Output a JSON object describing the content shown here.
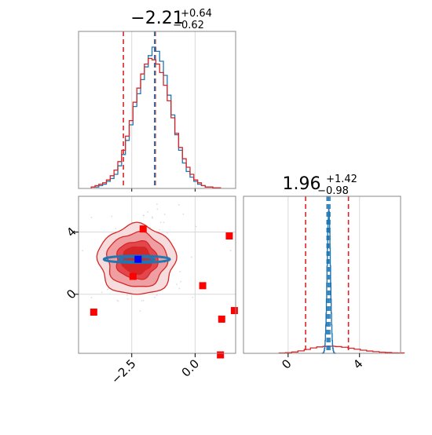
{
  "chart_data": [
    {
      "type": "histogram",
      "panel": "top-left",
      "title_main": "−2.21",
      "title_sup": "+0.64",
      "title_sub": "−0.62",
      "xlim": [
        -4.6,
        1.6
      ],
      "grid": true,
      "quantile_lines": [
        -2.83,
        -1.57
      ],
      "reference_line": -1.6,
      "series": [
        {
          "color": "#1f77b4",
          "bin_start": -4.1,
          "bin_width": 0.15,
          "counts": [
            1,
            1,
            2,
            3,
            5,
            7,
            10,
            16,
            24,
            34,
            45,
            58,
            67,
            77,
            86,
            94,
            100,
            97,
            90,
            80,
            66,
            52,
            38,
            27,
            18,
            12,
            8,
            5,
            3,
            2,
            1,
            1,
            0.5,
            0.5
          ]
        },
        {
          "color": "#d62728",
          "bin_start": -4.1,
          "bin_width": 0.15,
          "counts": [
            1,
            2,
            3,
            4,
            6,
            9,
            13,
            19,
            27,
            37,
            48,
            61,
            71,
            81,
            88,
            92,
            91,
            88,
            82,
            73,
            62,
            50,
            39,
            29,
            21,
            15,
            10,
            6,
            4,
            2,
            1,
            1,
            0.5,
            0.5
          ]
        }
      ]
    },
    {
      "type": "histogram",
      "panel": "bottom-right",
      "title_main": "1.96",
      "title_sup": "+1.42",
      "title_sub": "−0.98",
      "xlim": [
        -2.5,
        6.3
      ],
      "xticks": [
        0,
        4
      ],
      "xtick_labels": [
        "0",
        "4"
      ],
      "grid": true,
      "quantile_lines_red": [
        0.98,
        3.38
      ],
      "quantile_lines_blue": [
        2.18,
        2.26,
        2.34
      ],
      "series": [
        {
          "color": "#1f77b4",
          "x_center": 2.27,
          "sigma": 0.09,
          "peak_fraction": 0.92
        },
        {
          "color": "#d62728",
          "bin_start": -0.5,
          "bin_width": 0.35,
          "counts": [
            0.2,
            0.4,
            0.8,
            1.5,
            2.4,
            3.3,
            3.9,
            4.2,
            4.3,
            4.1,
            3.7,
            3.1,
            2.5,
            1.9,
            1.4,
            1.0,
            0.7,
            0.5,
            0.3,
            0.2
          ],
          "peak_fraction": 0.045
        }
      ]
    },
    {
      "type": "scatter",
      "panel": "bottom-left",
      "xlim": [
        -4.6,
        1.6
      ],
      "ylim": [
        -3.8,
        6.3
      ],
      "xticks": [
        -2.5,
        0.0
      ],
      "xtick_labels": [
        "−2.5",
        "0.0"
      ],
      "yticks": [
        0,
        4
      ],
      "ytick_labels": [
        "0",
        "4"
      ],
      "grid": true,
      "red_points": [
        [
          -2.05,
          4.2
        ],
        [
          1.35,
          3.75
        ],
        [
          -2.45,
          1.15
        ],
        [
          0.3,
          0.55
        ],
        [
          -4.0,
          -1.15
        ],
        [
          1.05,
          -1.6
        ],
        [
          1.55,
          -1.05
        ],
        [
          1.0,
          -3.9
        ]
      ],
      "blue_point": [
        -2.25,
        2.25
      ],
      "blue_ellipse": {
        "center": [
          -2.3,
          2.25
        ],
        "rx": 1.3,
        "ry": 0.22
      },
      "red_contours": [
        {
          "level": "outer",
          "fill": "#f6dcdc",
          "radius": 2.45
        },
        {
          "level": "middle",
          "fill": "#ef9ea1",
          "radius": 1.9
        },
        {
          "level": "inner",
          "fill": "#e4474b",
          "radius": 1.32
        },
        {
          "level": "core",
          "fill": "#d62728",
          "radius": 0.95
        }
      ]
    }
  ]
}
